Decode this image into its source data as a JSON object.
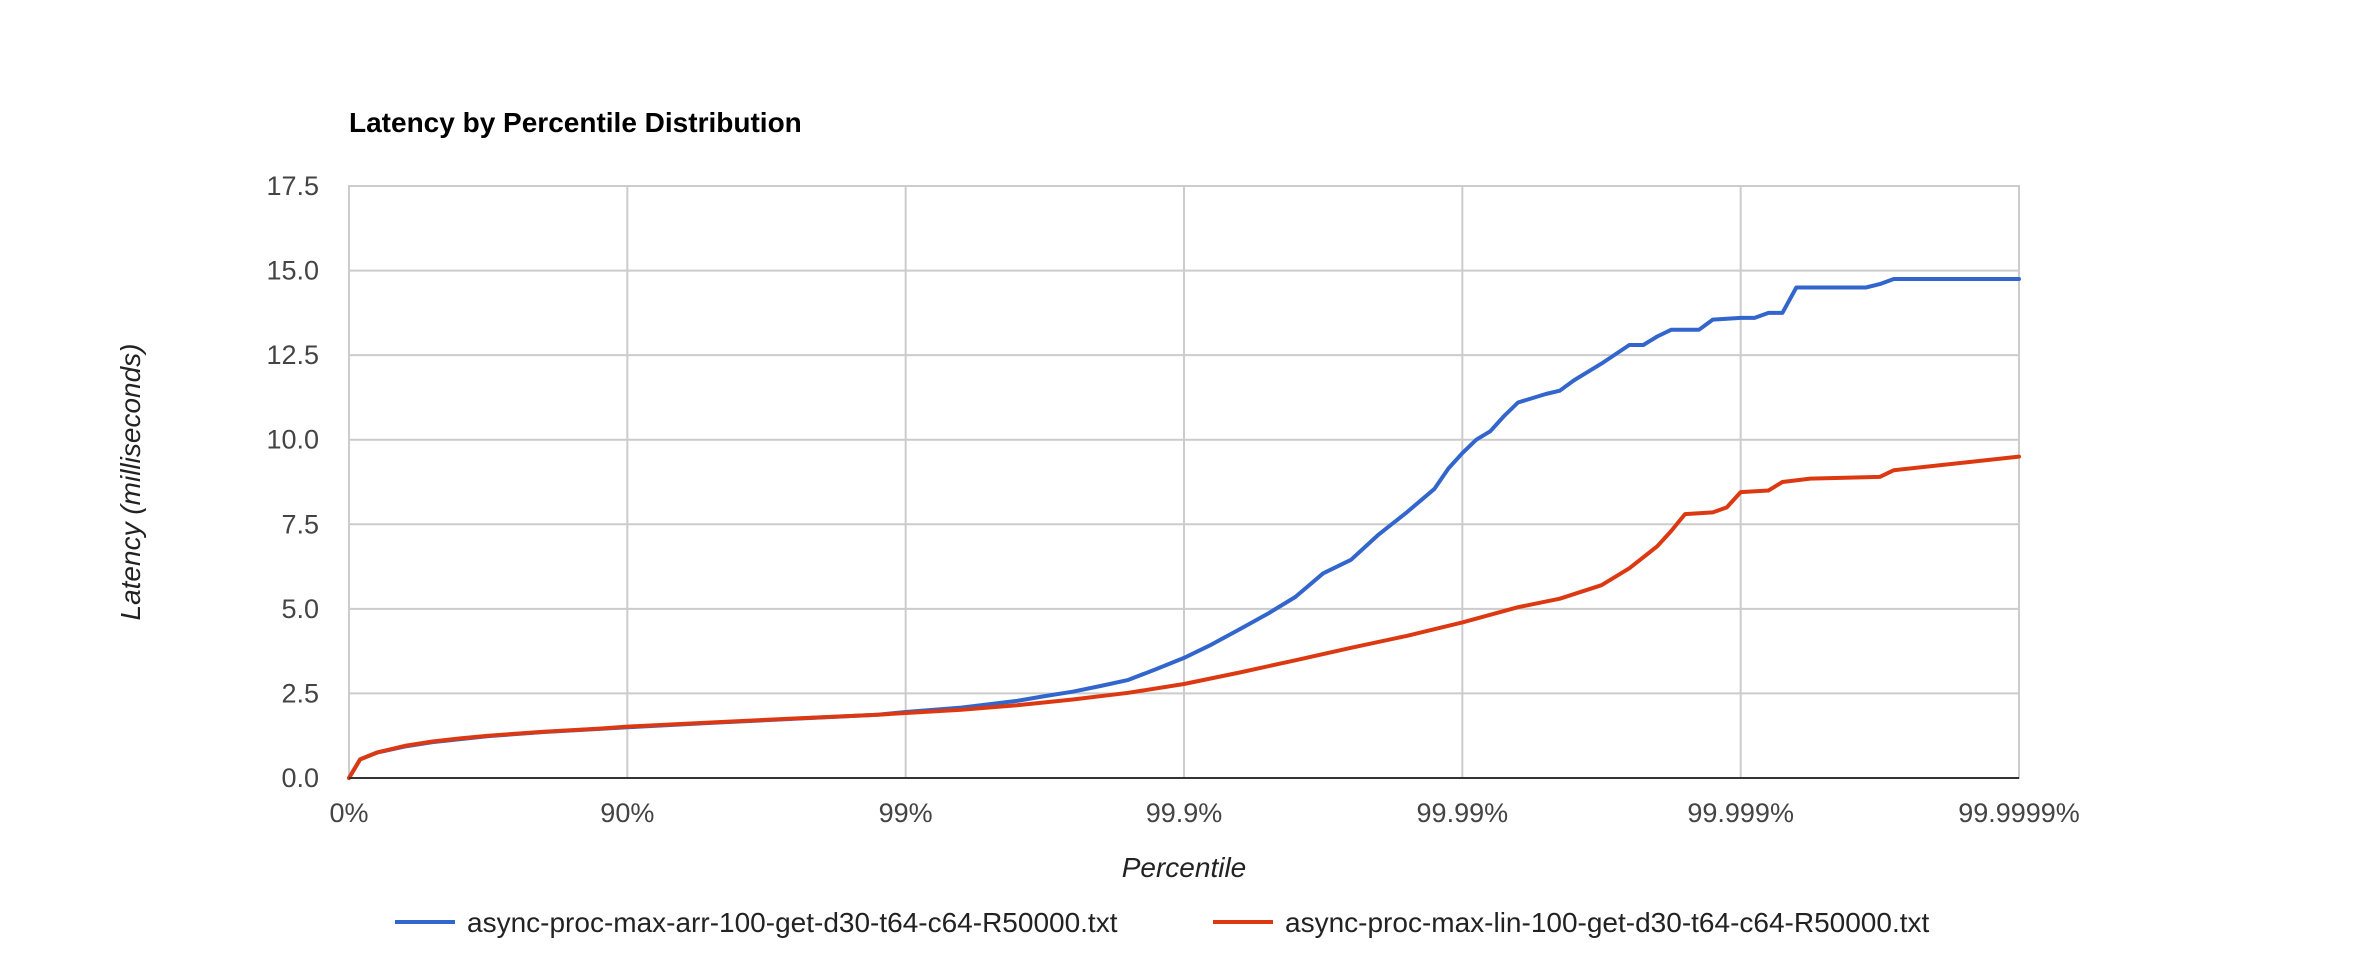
{
  "chart_data": {
    "type": "line",
    "title": "Latency by Percentile Distribution",
    "xlabel": "Percentile",
    "ylabel": "Latency (milliseconds)",
    "x_scale": "percentile-nines",
    "x_range": [
      0,
      6
    ],
    "ylim": [
      0,
      17.5
    ],
    "x_ticks": [
      "0%",
      "90%",
      "99%",
      "99.9%",
      "99.99%",
      "99.999%",
      "99.9999%"
    ],
    "y_ticks": [
      "0.0",
      "2.5",
      "5.0",
      "7.5",
      "10.0",
      "12.5",
      "15.0",
      "17.5"
    ],
    "grid": true,
    "legend_position": "bottom",
    "series": [
      {
        "name": "async-proc-max-arr-100-get-d30-t64-c64-R50000.txt",
        "color": "#3366cc",
        "points": [
          [
            0,
            0
          ],
          [
            0.04,
            0.55
          ],
          [
            0.1,
            0.75
          ],
          [
            0.2,
            0.93
          ],
          [
            0.3,
            1.06
          ],
          [
            0.4,
            1.15
          ],
          [
            0.5,
            1.24
          ],
          [
            0.7,
            1.36
          ],
          [
            0.9,
            1.45
          ],
          [
            1.0,
            1.5
          ],
          [
            1.3,
            1.63
          ],
          [
            1.6,
            1.75
          ],
          [
            1.9,
            1.87
          ],
          [
            2.0,
            1.95
          ],
          [
            2.2,
            2.08
          ],
          [
            2.4,
            2.28
          ],
          [
            2.5,
            2.42
          ],
          [
            2.6,
            2.55
          ],
          [
            2.7,
            2.72
          ],
          [
            2.8,
            2.9
          ],
          [
            2.9,
            3.22
          ],
          [
            3.0,
            3.55
          ],
          [
            3.1,
            3.95
          ],
          [
            3.2,
            4.4
          ],
          [
            3.3,
            4.85
          ],
          [
            3.4,
            5.35
          ],
          [
            3.5,
            6.05
          ],
          [
            3.6,
            6.45
          ],
          [
            3.7,
            7.2
          ],
          [
            3.8,
            7.85
          ],
          [
            3.9,
            8.55
          ],
          [
            3.95,
            9.15
          ],
          [
            4.0,
            9.6
          ],
          [
            4.05,
            10.0
          ],
          [
            4.1,
            10.25
          ],
          [
            4.15,
            10.7
          ],
          [
            4.2,
            11.1
          ],
          [
            4.3,
            11.35
          ],
          [
            4.35,
            11.45
          ],
          [
            4.4,
            11.75
          ],
          [
            4.5,
            12.25
          ],
          [
            4.6,
            12.8
          ],
          [
            4.65,
            12.8
          ],
          [
            4.7,
            13.05
          ],
          [
            4.75,
            13.25
          ],
          [
            4.85,
            13.25
          ],
          [
            4.9,
            13.55
          ],
          [
            5.0,
            13.6
          ],
          [
            5.05,
            13.6
          ],
          [
            5.1,
            13.75
          ],
          [
            5.15,
            13.75
          ],
          [
            5.2,
            14.5
          ],
          [
            5.35,
            14.5
          ],
          [
            5.45,
            14.5
          ],
          [
            5.5,
            14.6
          ],
          [
            5.55,
            14.75
          ],
          [
            6.0,
            14.75
          ]
        ]
      },
      {
        "name": "async-proc-max-lin-100-get-d30-t64-c64-R50000.txt",
        "color": "#dc3912",
        "points": [
          [
            0,
            0
          ],
          [
            0.04,
            0.55
          ],
          [
            0.1,
            0.75
          ],
          [
            0.2,
            0.95
          ],
          [
            0.3,
            1.08
          ],
          [
            0.4,
            1.17
          ],
          [
            0.5,
            1.25
          ],
          [
            0.7,
            1.37
          ],
          [
            0.9,
            1.46
          ],
          [
            1.0,
            1.52
          ],
          [
            1.3,
            1.64
          ],
          [
            1.6,
            1.76
          ],
          [
            1.9,
            1.87
          ],
          [
            2.0,
            1.92
          ],
          [
            2.2,
            2.02
          ],
          [
            2.4,
            2.15
          ],
          [
            2.6,
            2.32
          ],
          [
            2.8,
            2.52
          ],
          [
            3.0,
            2.78
          ],
          [
            3.2,
            3.12
          ],
          [
            3.4,
            3.48
          ],
          [
            3.6,
            3.85
          ],
          [
            3.8,
            4.2
          ],
          [
            4.0,
            4.6
          ],
          [
            4.2,
            5.05
          ],
          [
            4.35,
            5.3
          ],
          [
            4.5,
            5.7
          ],
          [
            4.6,
            6.2
          ],
          [
            4.7,
            6.85
          ],
          [
            4.75,
            7.3
          ],
          [
            4.8,
            7.8
          ],
          [
            4.9,
            7.85
          ],
          [
            4.95,
            8.0
          ],
          [
            5.0,
            8.45
          ],
          [
            5.1,
            8.5
          ],
          [
            5.15,
            8.75
          ],
          [
            5.25,
            8.85
          ],
          [
            5.5,
            8.9
          ],
          [
            5.55,
            9.1
          ],
          [
            6.0,
            9.5
          ]
        ]
      }
    ]
  }
}
